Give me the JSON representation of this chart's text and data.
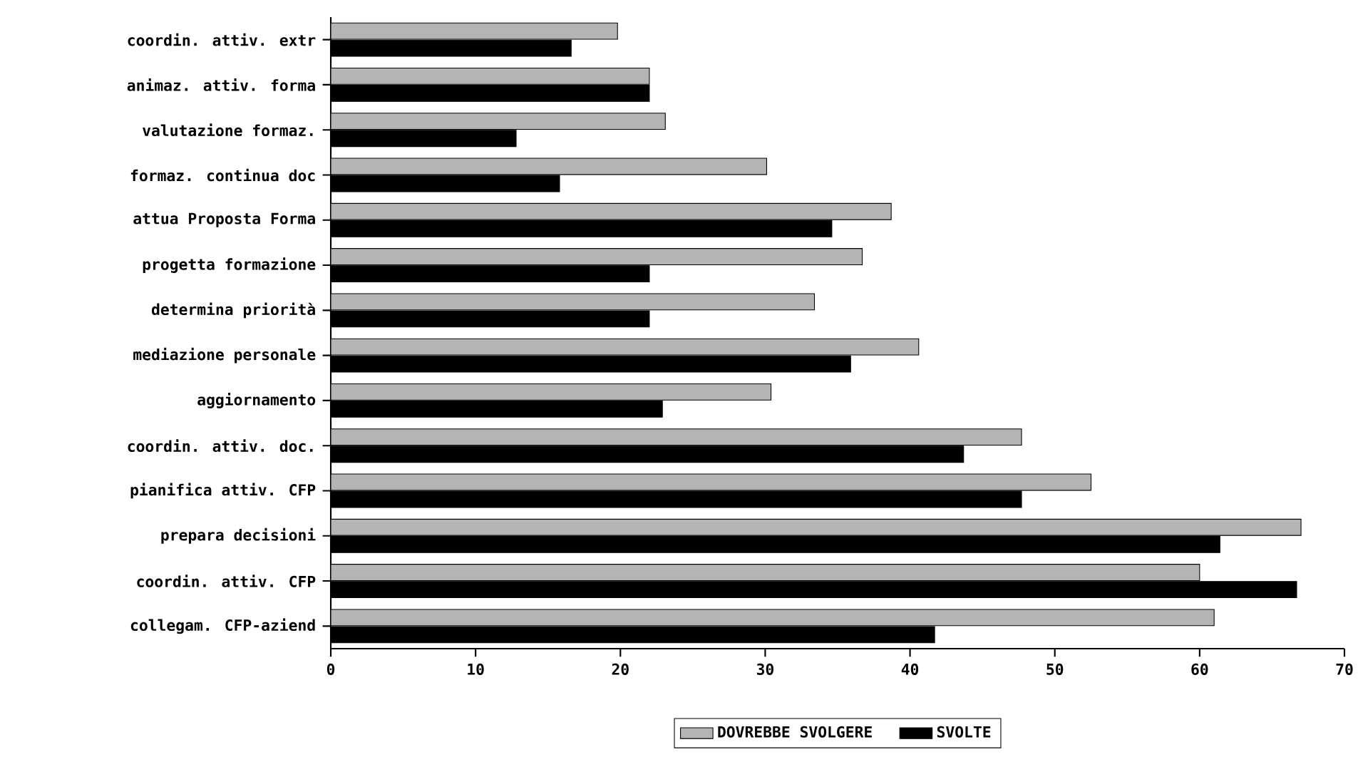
{
  "chart_data": {
    "type": "bar",
    "orientation": "horizontal",
    "categories": [
      "coordin. attiv. extr",
      "animaz. attiv. forma",
      "valutazione formaz.",
      "formaz. continua doc",
      "attua Proposta Forma",
      "progetta formazione",
      "determina priorità",
      "mediazione personale",
      "aggiornamento",
      "coordin. attiv. doc.",
      "pianifica attiv. CFP",
      "prepara decisioni",
      "coordin. attiv. CFP",
      "collegam. CFP-aziend"
    ],
    "series": [
      {
        "name": "DOVREBBE SVOLGERE",
        "color": "#b4b4b4",
        "values": [
          19.8,
          22.0,
          23.1,
          30.1,
          38.7,
          36.7,
          33.4,
          40.6,
          30.4,
          47.7,
          52.5,
          67.0,
          60.0,
          61.0
        ]
      },
      {
        "name": "SVOLTE",
        "color": "#000000",
        "values": [
          16.6,
          22.0,
          12.8,
          15.8,
          34.6,
          22.0,
          22.0,
          35.9,
          22.9,
          43.7,
          47.7,
          61.4,
          66.7,
          41.7
        ]
      }
    ],
    "xlim": [
      0,
      70
    ],
    "xticks": [
      0,
      10,
      20,
      30,
      40,
      50,
      60,
      70
    ],
    "grid": false,
    "legend": "bottom"
  }
}
